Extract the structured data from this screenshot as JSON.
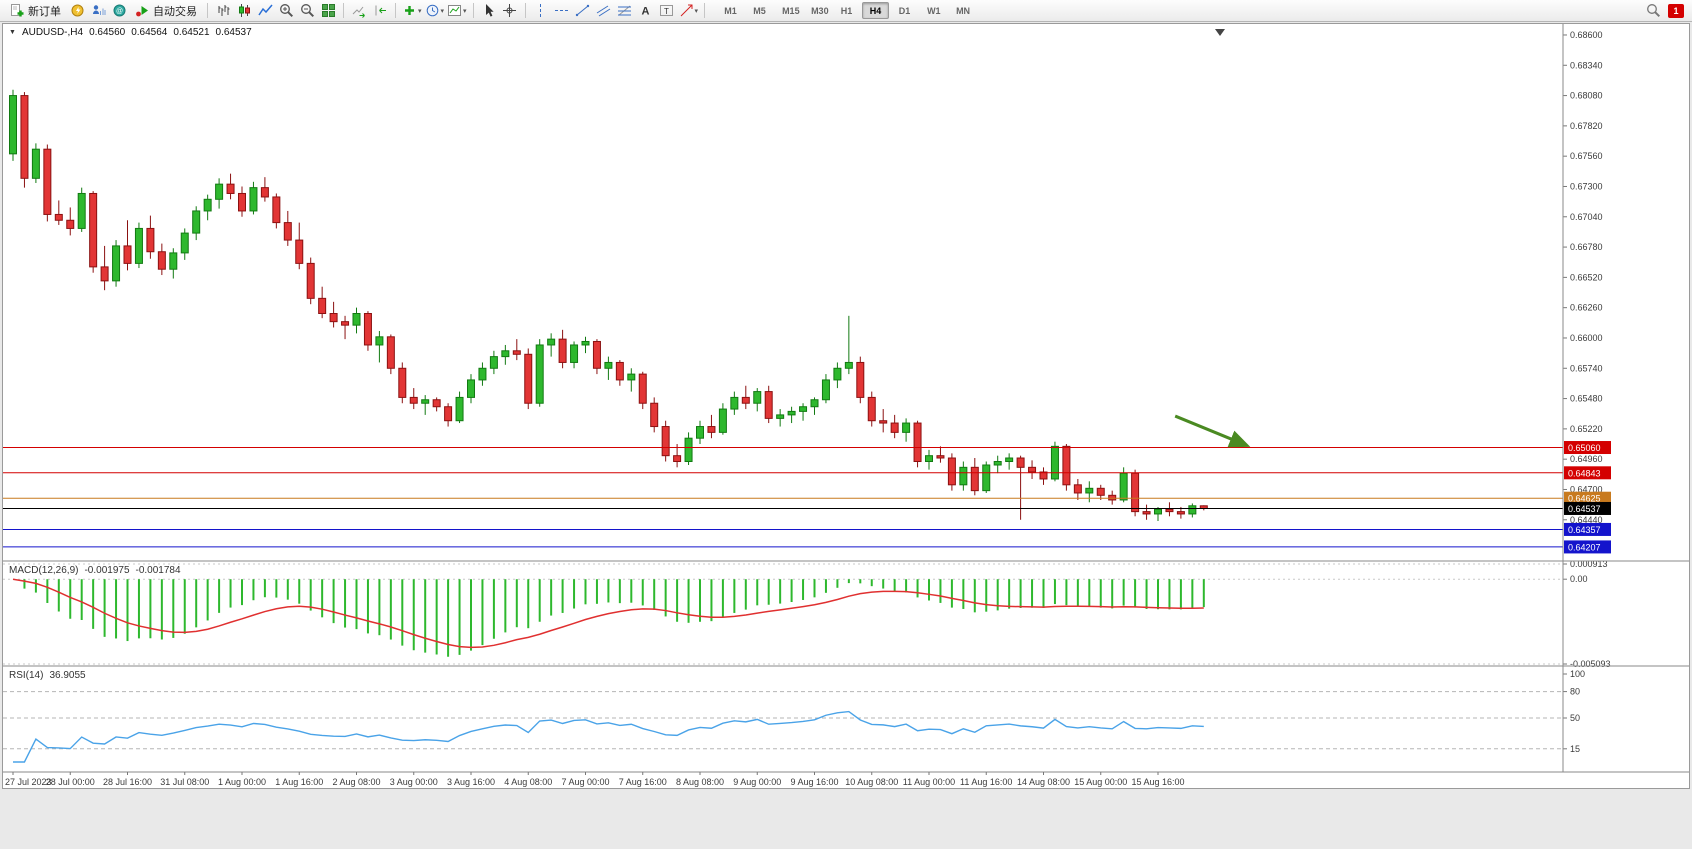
{
  "toolbar": {
    "new_order_label": "新订单",
    "autotrading_label": "自动交易",
    "timeframes": [
      "M1",
      "M5",
      "M15",
      "M30",
      "H1",
      "H4",
      "D1",
      "W1",
      "MN"
    ],
    "active_timeframe": "H4",
    "notification_badge": "1"
  },
  "chart": {
    "symbol_line": {
      "symbol": "AUDUSD-,H4",
      "open": "0.64560",
      "high": "0.64564",
      "low": "0.64521",
      "close": "0.64537"
    }
  },
  "macd_panel": {
    "name": "MACD(12,26,9)",
    "value_main": "-0.001975",
    "value_signal": "-0.001784",
    "axis_labels": [
      "0.000913",
      "0.00",
      "-0.005093"
    ]
  },
  "rsi_panel": {
    "name": "RSI(14)",
    "value": "36.9055",
    "axis_labels": [
      "100",
      "80",
      "50",
      "15"
    ],
    "levels": [
      80,
      50,
      15
    ]
  },
  "chart_data": {
    "type": "candlestick",
    "symbol": "AUDUSD",
    "timeframe": "H4",
    "y_axis_ticks": [
      "0.68600",
      "0.68340",
      "0.68080",
      "0.67820",
      "0.67560",
      "0.67300",
      "0.67040",
      "0.66780",
      "0.66520",
      "0.66260",
      "0.66000",
      "0.65740",
      "0.65480",
      "0.65220",
      "0.64960",
      "0.64700",
      "0.64440"
    ],
    "y_range": [
      0.64112,
      0.68677
    ],
    "x_labels": [
      "27 Jul 2023",
      "28 Jul 00:00",
      "28 Jul 16:00",
      "31 Jul 08:00",
      "1 Aug 00:00",
      "1 Aug 16:00",
      "2 Aug 08:00",
      "3 Aug 00:00",
      "3 Aug 16:00",
      "4 Aug 08:00",
      "7 Aug 00:00",
      "7 Aug 16:00",
      "8 Aug 08:00",
      "9 Aug 00:00",
      "9 Aug 16:00",
      "10 Aug 08:00",
      "11 Aug 00:00",
      "11 Aug 16:00",
      "14 Aug 08:00",
      "15 Aug 00:00",
      "15 Aug 16:00"
    ],
    "x_label_every": 5,
    "ohlc": [
      [
        0.6758,
        0.6813,
        0.6752,
        0.6808
      ],
      [
        0.6808,
        0.6811,
        0.6729,
        0.6737
      ],
      [
        0.6737,
        0.6767,
        0.6733,
        0.6762
      ],
      [
        0.6762,
        0.6766,
        0.67,
        0.6706
      ],
      [
        0.6706,
        0.6718,
        0.6697,
        0.6701
      ],
      [
        0.6701,
        0.6712,
        0.6688,
        0.6694
      ],
      [
        0.6694,
        0.6729,
        0.6691,
        0.6724
      ],
      [
        0.6724,
        0.6726,
        0.6656,
        0.6661
      ],
      [
        0.6661,
        0.6679,
        0.6641,
        0.6649
      ],
      [
        0.6649,
        0.6684,
        0.6644,
        0.6679
      ],
      [
        0.6679,
        0.6701,
        0.6658,
        0.6664
      ],
      [
        0.6664,
        0.6699,
        0.666,
        0.6694
      ],
      [
        0.6694,
        0.6705,
        0.6668,
        0.6674
      ],
      [
        0.6674,
        0.6681,
        0.6654,
        0.6659
      ],
      [
        0.6659,
        0.6677,
        0.6651,
        0.6673
      ],
      [
        0.6673,
        0.6694,
        0.6667,
        0.669
      ],
      [
        0.669,
        0.6713,
        0.6684,
        0.6709
      ],
      [
        0.6709,
        0.6723,
        0.6701,
        0.6719
      ],
      [
        0.6719,
        0.6737,
        0.6711,
        0.6732
      ],
      [
        0.6732,
        0.6741,
        0.6719,
        0.6724
      ],
      [
        0.6724,
        0.673,
        0.6704,
        0.6709
      ],
      [
        0.6709,
        0.6734,
        0.6706,
        0.6729
      ],
      [
        0.6729,
        0.6738,
        0.6717,
        0.6721
      ],
      [
        0.6721,
        0.6724,
        0.6694,
        0.6699
      ],
      [
        0.6699,
        0.6709,
        0.6679,
        0.6684
      ],
      [
        0.6684,
        0.6699,
        0.6659,
        0.6664
      ],
      [
        0.6664,
        0.6669,
        0.6629,
        0.6634
      ],
      [
        0.6634,
        0.6644,
        0.6617,
        0.6621
      ],
      [
        0.6621,
        0.6631,
        0.6609,
        0.6614
      ],
      [
        0.6614,
        0.6619,
        0.6599,
        0.6611
      ],
      [
        0.6611,
        0.6626,
        0.6604,
        0.6621
      ],
      [
        0.6621,
        0.6623,
        0.6589,
        0.6594
      ],
      [
        0.6594,
        0.6606,
        0.6579,
        0.6601
      ],
      [
        0.6601,
        0.6603,
        0.6569,
        0.6574
      ],
      [
        0.6574,
        0.6579,
        0.6544,
        0.6549
      ],
      [
        0.6549,
        0.6557,
        0.6539,
        0.6544
      ],
      [
        0.6544,
        0.6551,
        0.6534,
        0.6547
      ],
      [
        0.6547,
        0.6549,
        0.6537,
        0.6541
      ],
      [
        0.6541,
        0.6544,
        0.6524,
        0.6529
      ],
      [
        0.6529,
        0.6554,
        0.6527,
        0.6549
      ],
      [
        0.6549,
        0.6569,
        0.6544,
        0.6564
      ],
      [
        0.6564,
        0.6579,
        0.6559,
        0.6574
      ],
      [
        0.6574,
        0.6589,
        0.6569,
        0.6584
      ],
      [
        0.6584,
        0.6594,
        0.6577,
        0.6589
      ],
      [
        0.6589,
        0.6599,
        0.6581,
        0.6586
      ],
      [
        0.6586,
        0.6591,
        0.6539,
        0.6544
      ],
      [
        0.6544,
        0.6599,
        0.6541,
        0.6594
      ],
      [
        0.6594,
        0.6604,
        0.6584,
        0.6599
      ],
      [
        0.6599,
        0.6607,
        0.6574,
        0.6579
      ],
      [
        0.6579,
        0.6597,
        0.6574,
        0.6594
      ],
      [
        0.6594,
        0.6601,
        0.6587,
        0.6597
      ],
      [
        0.6597,
        0.6599,
        0.6569,
        0.6574
      ],
      [
        0.6574,
        0.6584,
        0.6564,
        0.6579
      ],
      [
        0.6579,
        0.6581,
        0.6559,
        0.6564
      ],
      [
        0.6564,
        0.6574,
        0.6554,
        0.6569
      ],
      [
        0.6569,
        0.6571,
        0.6539,
        0.6544
      ],
      [
        0.6544,
        0.6549,
        0.6519,
        0.6524
      ],
      [
        0.6524,
        0.6529,
        0.6494,
        0.6499
      ],
      [
        0.6499,
        0.6509,
        0.6489,
        0.6494
      ],
      [
        0.6494,
        0.6519,
        0.6491,
        0.6514
      ],
      [
        0.6514,
        0.6529,
        0.6509,
        0.6524
      ],
      [
        0.6524,
        0.6534,
        0.6514,
        0.6519
      ],
      [
        0.6519,
        0.6544,
        0.6517,
        0.6539
      ],
      [
        0.6539,
        0.6554,
        0.6534,
        0.6549
      ],
      [
        0.6549,
        0.6559,
        0.6539,
        0.6544
      ],
      [
        0.6544,
        0.6557,
        0.6537,
        0.6554
      ],
      [
        0.6554,
        0.6559,
        0.6527,
        0.6531
      ],
      [
        0.6531,
        0.6539,
        0.6524,
        0.6534
      ],
      [
        0.6534,
        0.6541,
        0.6527,
        0.6537
      ],
      [
        0.6537,
        0.6544,
        0.6529,
        0.6541
      ],
      [
        0.6541,
        0.6549,
        0.6534,
        0.6547
      ],
      [
        0.6547,
        0.6569,
        0.6544,
        0.6564
      ],
      [
        0.6564,
        0.6579,
        0.6557,
        0.6574
      ],
      [
        0.6574,
        0.6619,
        0.6569,
        0.6579
      ],
      [
        0.6579,
        0.6584,
        0.6544,
        0.6549
      ],
      [
        0.6549,
        0.6554,
        0.6524,
        0.6529
      ],
      [
        0.6529,
        0.6539,
        0.6519,
        0.6527
      ],
      [
        0.6527,
        0.6534,
        0.6514,
        0.6519
      ],
      [
        0.6519,
        0.6531,
        0.6511,
        0.6527
      ],
      [
        0.6527,
        0.6529,
        0.6489,
        0.6494
      ],
      [
        0.6494,
        0.6504,
        0.6487,
        0.6499
      ],
      [
        0.6499,
        0.6507,
        0.6493,
        0.6497
      ],
      [
        0.6497,
        0.6501,
        0.6469,
        0.6474
      ],
      [
        0.6474,
        0.6494,
        0.6469,
        0.6489
      ],
      [
        0.6489,
        0.6497,
        0.6465,
        0.6469
      ],
      [
        0.6469,
        0.6494,
        0.6467,
        0.6491
      ],
      [
        0.6491,
        0.6499,
        0.6484,
        0.6494
      ],
      [
        0.6494,
        0.6501,
        0.6487,
        0.6497
      ],
      [
        0.6497,
        0.6499,
        0.6444,
        0.6489
      ],
      [
        0.6489,
        0.6495,
        0.6479,
        0.6485
      ],
      [
        0.6485,
        0.6489,
        0.6474,
        0.6479
      ],
      [
        0.6479,
        0.6511,
        0.6477,
        0.6507
      ],
      [
        0.6507,
        0.6509,
        0.6469,
        0.6474
      ],
      [
        0.6474,
        0.6479,
        0.6461,
        0.6467
      ],
      [
        0.6467,
        0.6477,
        0.6459,
        0.6471
      ],
      [
        0.6471,
        0.6474,
        0.6461,
        0.6465
      ],
      [
        0.6465,
        0.6469,
        0.6457,
        0.6461
      ],
      [
        0.6461,
        0.6489,
        0.6459,
        0.6484
      ],
      [
        0.6484,
        0.6487,
        0.6447,
        0.6451
      ],
      [
        0.6451,
        0.6457,
        0.6444,
        0.6449
      ],
      [
        0.6449,
        0.6455,
        0.6443,
        0.6453
      ],
      [
        0.6453,
        0.6459,
        0.6447,
        0.6451
      ],
      [
        0.6451,
        0.6455,
        0.6445,
        0.6449
      ],
      [
        0.6449,
        0.6458,
        0.6446,
        0.6456
      ],
      [
        0.6456,
        0.64564,
        0.64521,
        0.64537
      ]
    ],
    "horizontal_levels": [
      {
        "price": 0.6506,
        "label": "0.65060",
        "color": "#d40000",
        "type": "resistance-line"
      },
      {
        "price": 0.64843,
        "label": "0.64843",
        "color": "#d40000",
        "type": "resistance-line"
      },
      {
        "price": 0.64625,
        "label": "0.64625",
        "color": "#c87a1e",
        "type": "level-line"
      },
      {
        "price": 0.64537,
        "label": "0.64537",
        "color": "#000000",
        "type": "current-price-line"
      },
      {
        "price": 0.64357,
        "label": "0.64357",
        "color": "#1414cc",
        "type": "support-line"
      },
      {
        "price": 0.64207,
        "label": "0.64207",
        "color": "#1414cc",
        "type": "support-line"
      }
    ],
    "arrow_annotation": {
      "x1_bar": 101.5,
      "price1": 0.6533,
      "x2_bar": 107.7,
      "price2": 0.6508,
      "color": "#4a8a22"
    },
    "macd": {
      "params": [
        12,
        26,
        9
      ],
      "hist_color": "#2eb82e",
      "signal_color": "#e03030",
      "y_max": 0.000913,
      "y_min": -0.005093
    },
    "rsi": {
      "period": 14,
      "color": "#4aa3e8",
      "last": 36.9055
    }
  },
  "colors": {
    "up": "#2eb82e",
    "up_border": "#127a12",
    "down": "#e23535",
    "down_border": "#8b1111",
    "bg": "#ffffff",
    "axis_text": "#3a3a3a"
  }
}
